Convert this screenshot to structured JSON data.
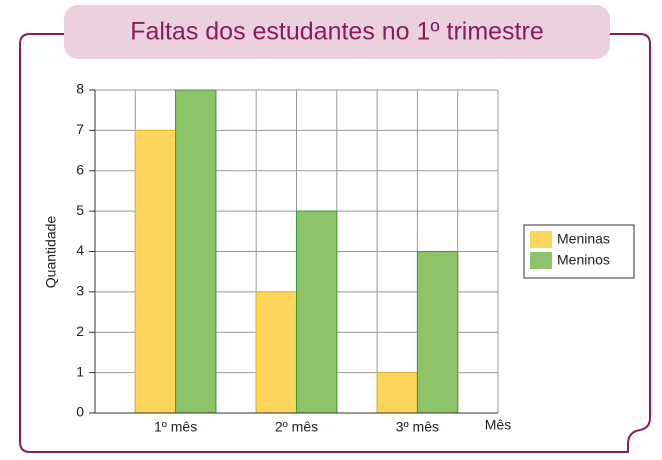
{
  "chart_data": {
    "type": "bar",
    "title": "Faltas dos estudantes no 1º trimestre",
    "x_label": "Mês",
    "y_label": "Quantidade",
    "categories": [
      "1º mês",
      "2º mês",
      "3º mês"
    ],
    "series": [
      {
        "name": "Meninas",
        "color": "#fdd55a",
        "values": [
          7,
          3,
          1
        ]
      },
      {
        "name": "Meninos",
        "color": "#8dc46a",
        "values": [
          8,
          5,
          4
        ]
      }
    ],
    "ylim": [
      0,
      8
    ],
    "yticks": [
      0,
      1,
      2,
      3,
      4,
      5,
      6,
      7,
      8
    ],
    "grid": true,
    "legend": "right"
  }
}
